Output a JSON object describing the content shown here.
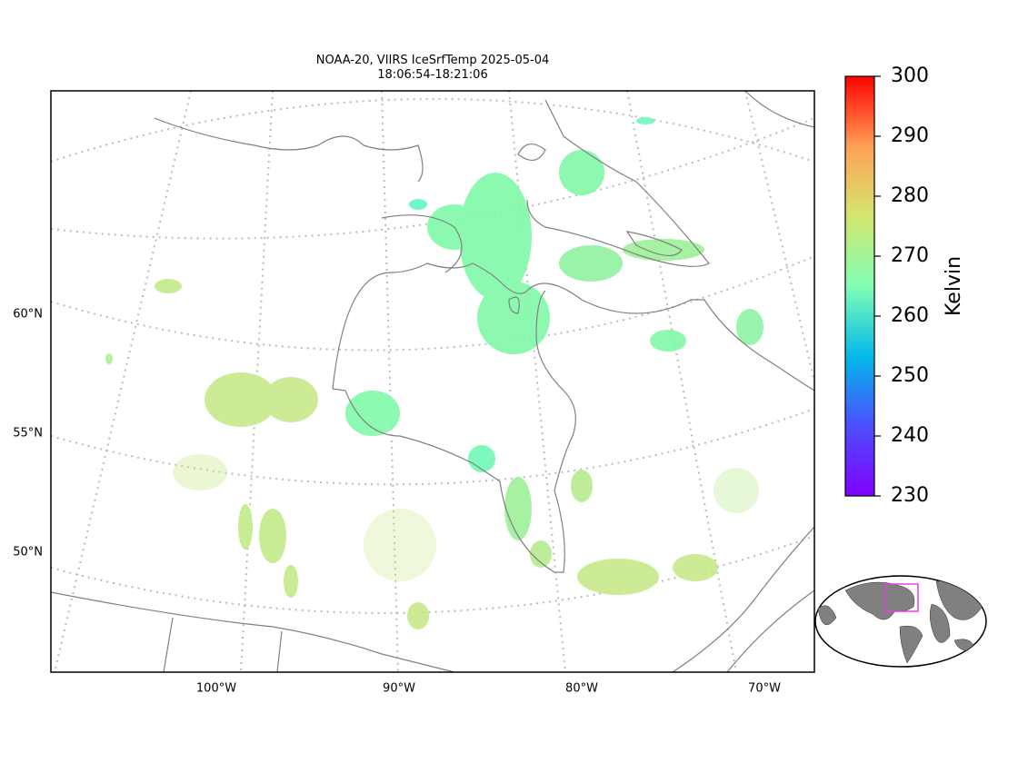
{
  "chart_data": {
    "type": "map",
    "title": "NOAA-20, VIIRS IceSrfTemp 2025-05-04",
    "subtitle": "18:06:54-18:21:06",
    "lat_labels": [
      {
        "value": 60,
        "label": "60°N"
      },
      {
        "value": 55,
        "label": "55°N"
      },
      {
        "value": 50,
        "label": "50°N"
      }
    ],
    "lon_labels": [
      {
        "value": -100,
        "label": "100°W"
      },
      {
        "value": -90,
        "label": "90°W"
      },
      {
        "value": -80,
        "label": "80°W"
      },
      {
        "value": -70,
        "label": "70°W"
      }
    ],
    "colorbar": {
      "label": "Kelvin",
      "lim": [
        230,
        300
      ],
      "ticks": [
        230,
        240,
        250,
        260,
        270,
        280,
        290,
        300
      ]
    }
  }
}
